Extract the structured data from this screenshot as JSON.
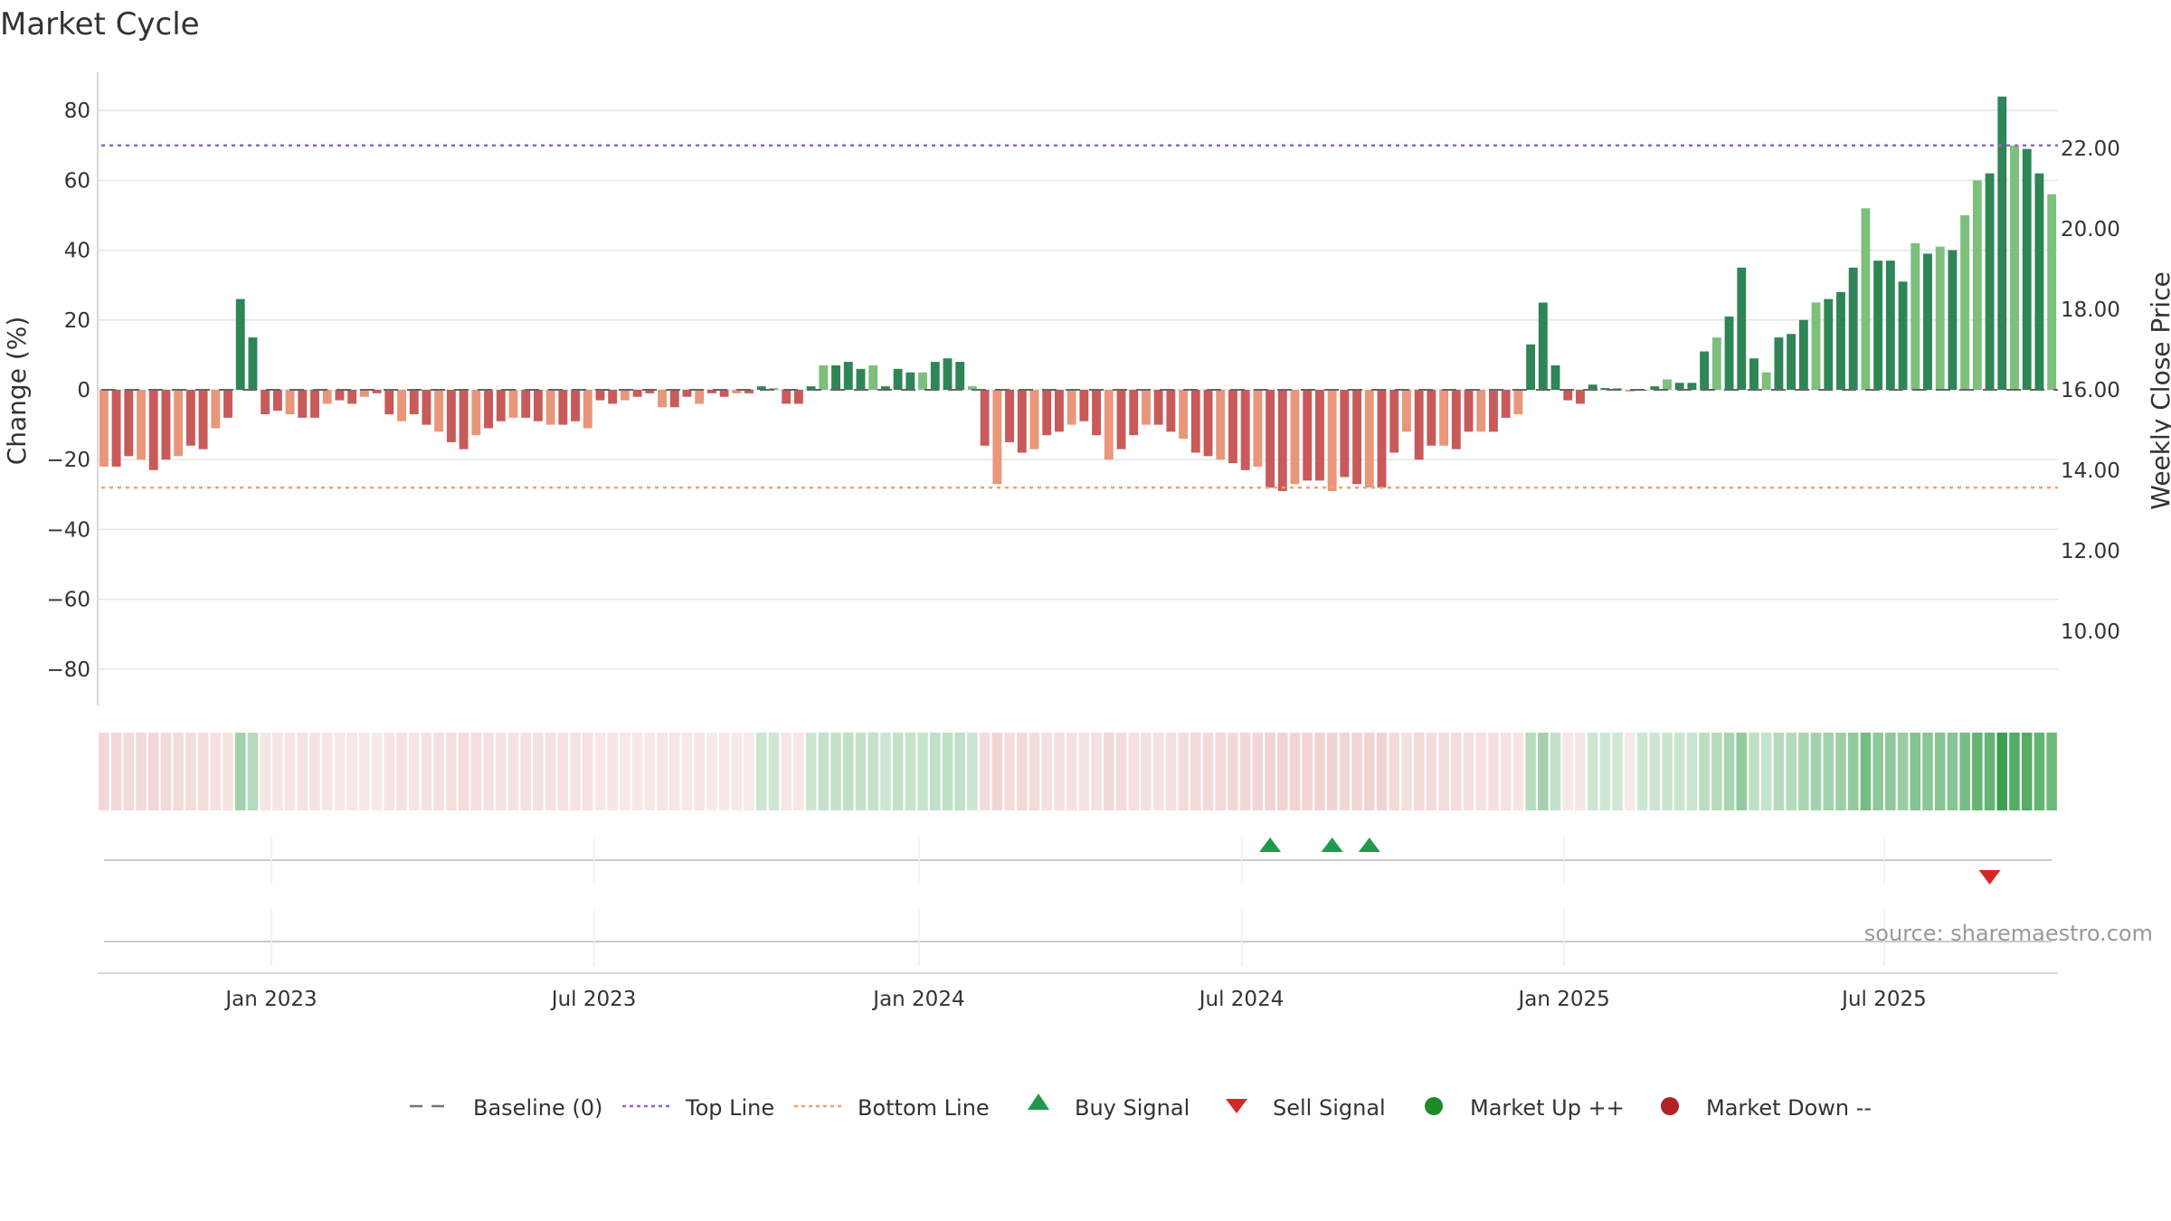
{
  "chart_data": {
    "type": "bar",
    "title": "Market Cycle",
    "ylabel": "Change (%)",
    "y2label": "Weekly Close Price",
    "ylim": [
      -90,
      90
    ],
    "y_ticks": [
      80,
      60,
      40,
      20,
      0,
      -20,
      -40,
      -60,
      -80
    ],
    "y_tick_labels": [
      "80",
      "60",
      "40",
      "20",
      "0",
      "−20",
      "−40",
      "−60",
      "−80"
    ],
    "y2_ticks": [
      22,
      20,
      18,
      16,
      14,
      12,
      10
    ],
    "y2_tick_labels": [
      "22.00",
      "20.00",
      "18.00",
      "16.00",
      "14.00",
      "12.00",
      "10.00"
    ],
    "x_ticks": [
      "Jan 2023",
      "Jul 2023",
      "Jan 2024",
      "Jul 2024",
      "Jan 2025",
      "Jul 2025"
    ],
    "top_line": 70,
    "bottom_line": -28,
    "values": [
      -22,
      -22,
      -19,
      -20,
      -23,
      -20,
      -19,
      -16,
      -17,
      -11,
      -8,
      26,
      15,
      -7,
      -6,
      -7,
      -8,
      -8,
      -4,
      -3,
      -4,
      -2,
      -1,
      -7,
      -9,
      -7,
      -10,
      -12,
      -15,
      -17,
      -13,
      -11,
      -9,
      -8,
      -8,
      -9,
      -10,
      -10,
      -9,
      -11,
      -3,
      -4,
      -3,
      -2,
      -1,
      -5,
      -5,
      -2,
      -4,
      -1,
      -2,
      -1,
      -1,
      1,
      0.5,
      -4,
      -4,
      1,
      7,
      7,
      8,
      6,
      7,
      1,
      6,
      5,
      5,
      8,
      9,
      8,
      1,
      -16,
      -27,
      -15,
      -18,
      -17,
      -13,
      -12,
      -10,
      -9,
      -13,
      -20,
      -17,
      -13,
      -10,
      -10,
      -12,
      -14,
      -18,
      -19,
      -20,
      -21,
      -23,
      -22,
      -28,
      -29,
      -27,
      -26,
      -26,
      -29,
      -25,
      -27,
      -28,
      -28,
      -18,
      -12,
      -20,
      -16,
      -16,
      -17,
      -12,
      -12,
      -12,
      -8,
      -7,
      13,
      25,
      7,
      -3,
      -4,
      1.5,
      0.5,
      0.5,
      -0.5,
      0,
      1,
      3,
      2,
      2,
      11,
      15,
      21,
      35,
      9,
      5,
      15,
      16,
      20,
      25,
      26,
      28,
      35,
      52,
      37,
      37,
      31,
      42,
      39,
      41,
      40,
      50,
      60,
      62,
      84,
      70,
      69,
      62,
      56
    ],
    "signals": {
      "buy_label": "Buy Signal",
      "sell_label": "Sell Signal",
      "buy_indices": [
        94,
        99,
        102
      ],
      "sell_indices": [
        152
      ]
    },
    "legend": [
      {
        "label": "Baseline (0)",
        "symbol": "dash",
        "color": "#777777"
      },
      {
        "label": "Top Line",
        "symbol": "dot",
        "color": "#9467bd"
      },
      {
        "label": "Bottom Line",
        "symbol": "dot",
        "color": "#f0a070"
      },
      {
        "label": "Buy Signal",
        "symbol": "triangle-up",
        "color": "#1e9a4a"
      },
      {
        "label": "Sell Signal",
        "symbol": "triangle-down",
        "color": "#d62728"
      },
      {
        "label": "Market Up ++",
        "symbol": "circle",
        "color": "#1e8a2a"
      },
      {
        "label": "Market Down --",
        "symbol": "circle",
        "color": "#b22222"
      }
    ],
    "colors": {
      "up_dark": "#2e8556",
      "up_light": "#7dbf7d",
      "down_dark": "#c85a5a",
      "down_light": "#e8977a"
    }
  },
  "source_text": "source: sharemaestro.com"
}
